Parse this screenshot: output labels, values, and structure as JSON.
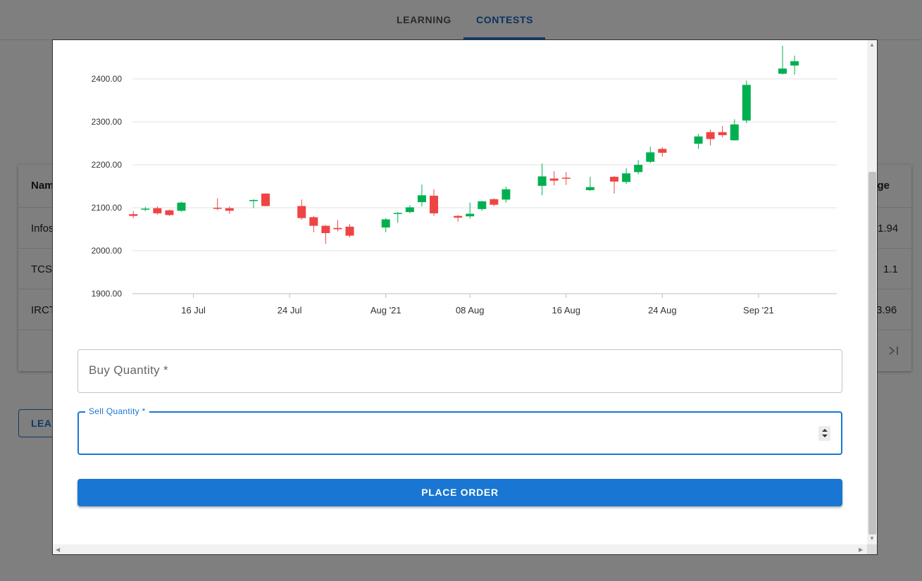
{
  "nav": {
    "tabs": [
      {
        "label": "LEARNING"
      },
      {
        "label": "CONTESTS"
      }
    ]
  },
  "background_table": {
    "header_left": "Nam",
    "header_right": "ange",
    "rows": [
      {
        "name": "Infos",
        "change": "1.94"
      },
      {
        "name": "TCS",
        "change": "1.1"
      },
      {
        "name": "IRCT",
        "change": "3.96"
      }
    ],
    "last_page_icon": "last-page-icon"
  },
  "background_button": {
    "label": "LEA"
  },
  "dialog": {
    "buy_quantity_label": "Buy Quantity *",
    "sell_quantity_label": "Sell Quantity *",
    "sell_quantity_value": "",
    "place_order_label": "PLACE ORDER"
  },
  "colors": {
    "up": "#00b050",
    "down": "#ef4444",
    "primary": "#1976d2"
  },
  "chart_data": {
    "type": "candlestick",
    "title": "",
    "ylim": [
      1900,
      2400
    ],
    "y_ticks": [
      "1900.00",
      "2000.00",
      "2100.00",
      "2200.00",
      "2300.00",
      "2400.00"
    ],
    "x_ticks": [
      {
        "label": "16 Jul",
        "day": 15
      },
      {
        "label": "24 Jul",
        "day": 23
      },
      {
        "label": "Aug '21",
        "day": 31
      },
      {
        "label": "08 Aug",
        "day": 38
      },
      {
        "label": "16 Aug",
        "day": 46
      },
      {
        "label": "24 Aug",
        "day": 54
      },
      {
        "label": "Sep '21",
        "day": 62
      }
    ],
    "grid": true,
    "candles": [
      {
        "day": 10,
        "open": 2085,
        "high": 2092,
        "low": 2076,
        "close": 2081
      },
      {
        "day": 11,
        "open": 2098,
        "high": 2102,
        "low": 2092,
        "close": 2098
      },
      {
        "day": 12,
        "open": 2099,
        "high": 2103,
        "low": 2084,
        "close": 2087
      },
      {
        "day": 13,
        "open": 2094,
        "high": 2096,
        "low": 2081,
        "close": 2083
      },
      {
        "day": 14,
        "open": 2093,
        "high": 2114,
        "low": 2091,
        "close": 2112
      },
      {
        "day": 17,
        "open": 2100,
        "high": 2122,
        "low": 2094,
        "close": 2099
      },
      {
        "day": 18,
        "open": 2099,
        "high": 2103,
        "low": 2086,
        "close": 2093
      },
      {
        "day": 20,
        "open": 2117,
        "high": 2120,
        "low": 2099,
        "close": 2118
      },
      {
        "day": 21,
        "open": 2133,
        "high": 2134,
        "low": 2103,
        "close": 2104
      },
      {
        "day": 24,
        "open": 2104,
        "high": 2119,
        "low": 2072,
        "close": 2076
      },
      {
        "day": 25,
        "open": 2078,
        "high": 2081,
        "low": 2043,
        "close": 2058
      },
      {
        "day": 26,
        "open": 2058,
        "high": 2060,
        "low": 2016,
        "close": 2041
      },
      {
        "day": 27,
        "open": 2053,
        "high": 2071,
        "low": 2045,
        "close": 2050
      },
      {
        "day": 28,
        "open": 2056,
        "high": 2062,
        "low": 2031,
        "close": 2035
      },
      {
        "day": 31,
        "open": 2054,
        "high": 2076,
        "low": 2043,
        "close": 2073
      },
      {
        "day": 32,
        "open": 2088,
        "high": 2090,
        "low": 2065,
        "close": 2088
      },
      {
        "day": 33,
        "open": 2090,
        "high": 2106,
        "low": 2087,
        "close": 2101
      },
      {
        "day": 34,
        "open": 2113,
        "high": 2154,
        "low": 2103,
        "close": 2129
      },
      {
        "day": 35,
        "open": 2128,
        "high": 2143,
        "low": 2081,
        "close": 2087
      },
      {
        "day": 37,
        "open": 2081,
        "high": 2083,
        "low": 2068,
        "close": 2077
      },
      {
        "day": 38,
        "open": 2080,
        "high": 2112,
        "low": 2075,
        "close": 2086
      },
      {
        "day": 39,
        "open": 2097,
        "high": 2116,
        "low": 2093,
        "close": 2115
      },
      {
        "day": 40,
        "open": 2120,
        "high": 2122,
        "low": 2103,
        "close": 2107
      },
      {
        "day": 41,
        "open": 2119,
        "high": 2149,
        "low": 2112,
        "close": 2143
      },
      {
        "day": 44,
        "open": 2151,
        "high": 2203,
        "low": 2129,
        "close": 2173
      },
      {
        "day": 45,
        "open": 2168,
        "high": 2185,
        "low": 2152,
        "close": 2163
      },
      {
        "day": 46,
        "open": 2170,
        "high": 2183,
        "low": 2153,
        "close": 2169
      },
      {
        "day": 48,
        "open": 2141,
        "high": 2172,
        "low": 2139,
        "close": 2148
      },
      {
        "day": 50,
        "open": 2172,
        "high": 2174,
        "low": 2133,
        "close": 2161
      },
      {
        "day": 51,
        "open": 2160,
        "high": 2192,
        "low": 2155,
        "close": 2180
      },
      {
        "day": 52,
        "open": 2183,
        "high": 2211,
        "low": 2178,
        "close": 2200
      },
      {
        "day": 53,
        "open": 2207,
        "high": 2242,
        "low": 2204,
        "close": 2229
      },
      {
        "day": 54,
        "open": 2237,
        "high": 2241,
        "low": 2219,
        "close": 2228
      },
      {
        "day": 57,
        "open": 2249,
        "high": 2272,
        "low": 2237,
        "close": 2266
      },
      {
        "day": 58,
        "open": 2276,
        "high": 2282,
        "low": 2245,
        "close": 2260
      },
      {
        "day": 59,
        "open": 2276,
        "high": 2290,
        "low": 2264,
        "close": 2269
      },
      {
        "day": 60,
        "open": 2257,
        "high": 2306,
        "low": 2256,
        "close": 2294
      },
      {
        "day": 61,
        "open": 2303,
        "high": 2396,
        "low": 2297,
        "close": 2386
      },
      {
        "day": 64,
        "open": 2412,
        "high": 2477,
        "low": 2410,
        "close": 2424
      },
      {
        "day": 65,
        "open": 2431,
        "high": 2454,
        "low": 2410,
        "close": 2441
      }
    ]
  }
}
